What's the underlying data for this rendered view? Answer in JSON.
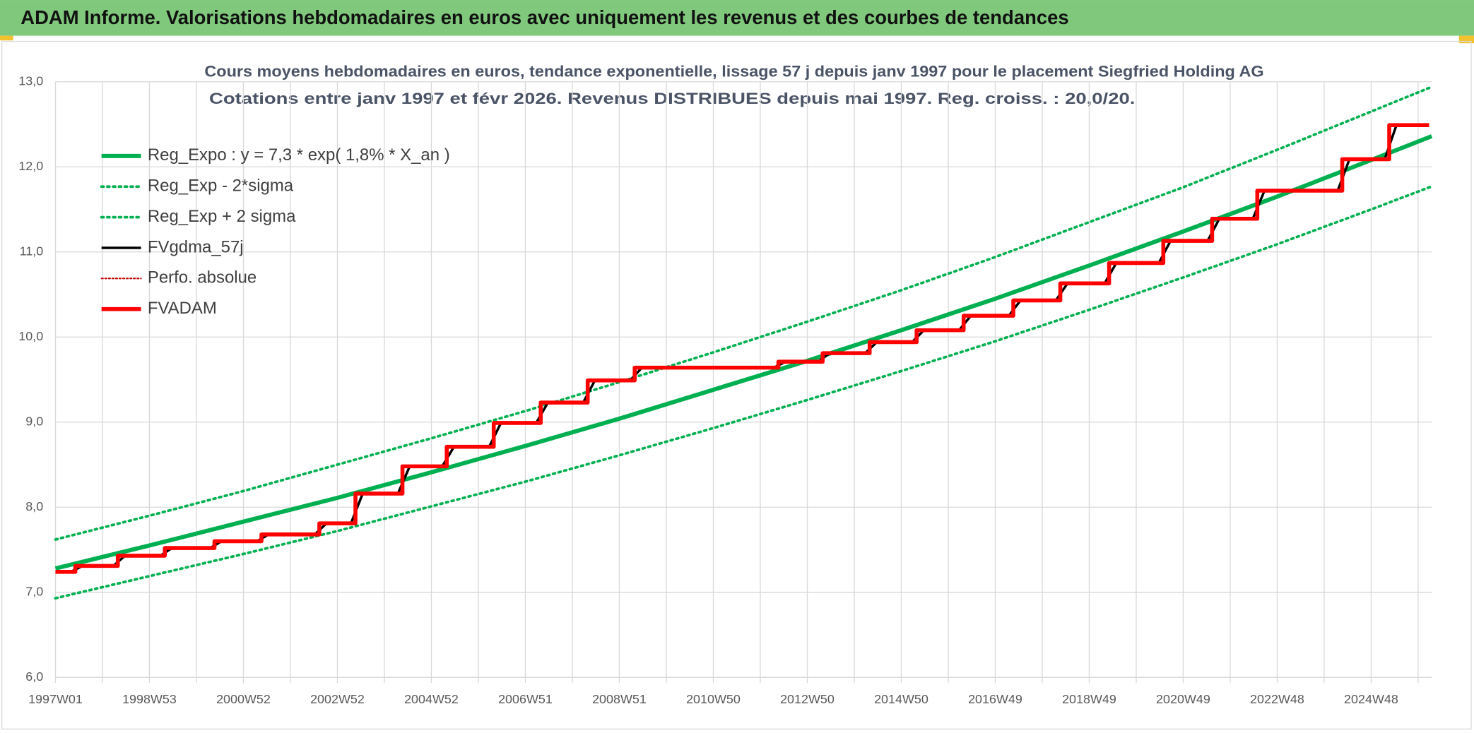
{
  "header": {
    "title": "ADAM Informe. Valorisations hebdomadaires en euros avec uniquement les revenus et des courbes de tendances"
  },
  "chart_data": {
    "type": "line",
    "title": "Cours moyens hebdomadaires en euros, tendance exponentielle, lissage 57 j depuis janv 1997 pour le placement Siegfried Holding AG",
    "subtitle": "Cotations entre janv 1997 et févr 2026. Revenus DISTRIBUES depuis mai 1997. Reg. croiss. : 20,0/20.",
    "xlim": [
      0,
      1523
    ],
    "xticks": [
      {
        "value": 0,
        "label": "1997W01"
      },
      {
        "value": 104,
        "label": "1998W53"
      },
      {
        "value": 208,
        "label": "2000W52"
      },
      {
        "value": 312,
        "label": "2002W52"
      },
      {
        "value": 416,
        "label": "2004W52"
      },
      {
        "value": 520,
        "label": "2006W51"
      },
      {
        "value": 624,
        "label": "2008W51"
      },
      {
        "value": 728,
        "label": "2010W50"
      },
      {
        "value": 832,
        "label": "2012W50"
      },
      {
        "value": 936,
        "label": "2014W50"
      },
      {
        "value": 1040,
        "label": "2016W49"
      },
      {
        "value": 1144,
        "label": "2018W49"
      },
      {
        "value": 1248,
        "label": "2020W49"
      },
      {
        "value": 1352,
        "label": "2022W48"
      },
      {
        "value": 1456,
        "label": "2024W48"
      }
    ],
    "xminor_ticks": [
      52,
      156,
      260,
      364,
      468,
      572,
      676,
      780,
      884,
      988,
      1092,
      1196,
      1300,
      1404,
      1508
    ],
    "ylim": [
      6,
      13
    ],
    "yticks": [
      {
        "value": 6,
        "label": "6,0"
      },
      {
        "value": 7,
        "label": "7,0"
      },
      {
        "value": 8,
        "label": "8,0"
      },
      {
        "value": 9,
        "label": "9,0"
      },
      {
        "value": 10,
        "label": "10,0"
      },
      {
        "value": 11,
        "label": "11,0"
      },
      {
        "value": 12,
        "label": "12,0"
      },
      {
        "value": 13,
        "label": "13,0"
      }
    ],
    "grid": true,
    "legend": "top-left",
    "series": [
      {
        "name": "Reg_Expo : y = 7,3 * exp( 1,8% *  X_an )",
        "color": "#00b050",
        "style": "solid",
        "x": [
          0,
          104,
          208,
          312,
          416,
          520,
          624,
          728,
          832,
          936,
          1040,
          1144,
          1248,
          1352,
          1456,
          1523
        ],
        "values": [
          7.28,
          7.55,
          7.83,
          8.11,
          8.41,
          8.72,
          9.04,
          9.38,
          9.72,
          10.08,
          10.45,
          10.84,
          11.24,
          11.65,
          12.08,
          12.36
        ]
      },
      {
        "name": "Reg_Exp - 2*sigma",
        "color": "#00b050",
        "style": "dotted",
        "x": [
          0,
          104,
          208,
          312,
          416,
          520,
          624,
          728,
          832,
          936,
          1040,
          1144,
          1248,
          1352,
          1456,
          1523
        ],
        "values": [
          6.93,
          7.19,
          7.45,
          7.72,
          8.01,
          8.3,
          8.61,
          8.93,
          9.26,
          9.6,
          9.95,
          10.32,
          10.7,
          11.09,
          11.5,
          11.77
        ]
      },
      {
        "name": "Reg_Exp + 2 sigma",
        "color": "#00b050",
        "style": "dotted",
        "x": [
          0,
          104,
          208,
          312,
          416,
          520,
          624,
          728,
          832,
          936,
          1040,
          1144,
          1248,
          1352,
          1456,
          1523
        ],
        "values": [
          7.62,
          7.9,
          8.19,
          8.5,
          8.81,
          9.13,
          9.47,
          9.82,
          10.18,
          10.55,
          10.94,
          11.35,
          11.76,
          12.2,
          12.65,
          12.94
        ]
      },
      {
        "name": "FVgdma_57j",
        "color": "#000000",
        "style": "solid",
        "x": [
          0,
          17,
          30,
          64,
          77,
          116,
          129,
          171,
          184,
          223,
          236,
          287,
          300,
          327,
          340,
          379,
          392,
          428,
          441,
          480,
          493,
          532,
          545,
          584,
          597,
          636,
          649,
          795,
          808,
          844,
          857,
          896,
          909,
          948,
          961,
          1000,
          1013,
          1055,
          1068,
          1107,
          1120,
          1161,
          1174,
          1221,
          1234,
          1275,
          1288,
          1325,
          1338,
          1419,
          1432,
          1471,
          1484,
          1520
        ],
        "values": [
          7.24,
          7.24,
          7.31,
          7.31,
          7.43,
          7.43,
          7.52,
          7.52,
          7.6,
          7.6,
          7.68,
          7.68,
          7.81,
          7.81,
          8.16,
          8.16,
          8.48,
          8.48,
          8.71,
          8.71,
          8.99,
          8.99,
          9.23,
          9.23,
          9.49,
          9.49,
          9.64,
          9.64,
          9.71,
          9.71,
          9.81,
          9.81,
          9.94,
          9.94,
          10.08,
          10.08,
          10.25,
          10.25,
          10.43,
          10.43,
          10.63,
          10.63,
          10.87,
          10.87,
          11.13,
          11.13,
          11.39,
          11.39,
          11.72,
          11.72,
          12.09,
          12.09,
          12.49,
          12.49
        ]
      },
      {
        "name": "Perfo. absolue",
        "color": "#c00000",
        "style": "dotted"
      },
      {
        "name": "FVADAM",
        "color": "#ff0000",
        "style": "solid",
        "x": [
          0,
          22,
          22,
          69,
          69,
          121,
          121,
          176,
          176,
          228,
          228,
          292,
          292,
          332,
          332,
          384,
          384,
          433,
          433,
          485,
          485,
          537,
          537,
          589,
          589,
          641,
          641,
          800,
          800,
          849,
          849,
          901,
          901,
          953,
          953,
          1005,
          1005,
          1060,
          1060,
          1112,
          1112,
          1166,
          1166,
          1226,
          1226,
          1280,
          1280,
          1330,
          1330,
          1424,
          1424,
          1476,
          1476,
          1520
        ],
        "values": [
          7.24,
          7.24,
          7.31,
          7.31,
          7.43,
          7.43,
          7.52,
          7.52,
          7.6,
          7.6,
          7.68,
          7.68,
          7.81,
          7.81,
          8.16,
          8.16,
          8.48,
          8.48,
          8.71,
          8.71,
          8.99,
          8.99,
          9.23,
          9.23,
          9.49,
          9.49,
          9.64,
          9.64,
          9.71,
          9.71,
          9.81,
          9.81,
          9.94,
          9.94,
          10.08,
          10.08,
          10.25,
          10.25,
          10.43,
          10.43,
          10.63,
          10.63,
          10.87,
          10.87,
          11.13,
          11.13,
          11.39,
          11.39,
          11.72,
          11.72,
          12.09,
          12.09,
          12.49,
          12.49
        ]
      }
    ]
  }
}
